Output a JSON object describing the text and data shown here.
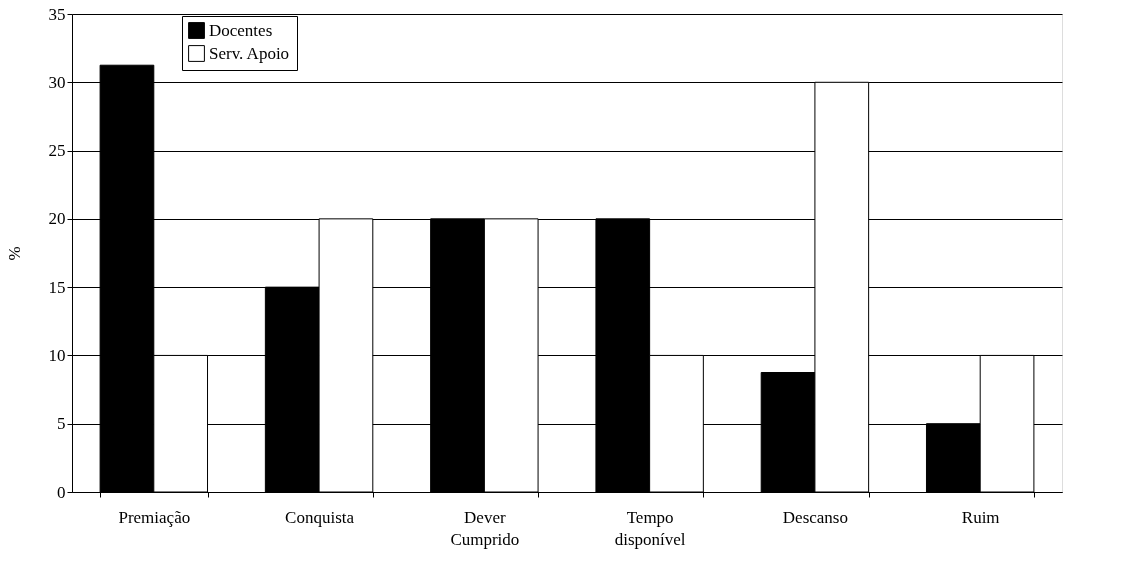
{
  "chart_data": {
    "type": "bar",
    "ylabel": "%",
    "categories": [
      "Premiação",
      "Conquista",
      "Dever Cumprido",
      "Tempo disponível",
      "Descanso",
      "Ruim"
    ],
    "series": [
      {
        "name": "Docentes",
        "color": "#000000",
        "values": [
          31.25,
          15,
          20,
          20,
          8.75,
          5
        ]
      },
      {
        "name": "Serv. Apoio",
        "color": "#ffffff",
        "values": [
          10,
          20,
          20,
          10,
          30,
          10
        ]
      }
    ],
    "ylim": [
      0,
      35
    ],
    "yticks": [
      0,
      5,
      10,
      15,
      20,
      25,
      30,
      35
    ],
    "grid": "y",
    "legend": "top left"
  }
}
